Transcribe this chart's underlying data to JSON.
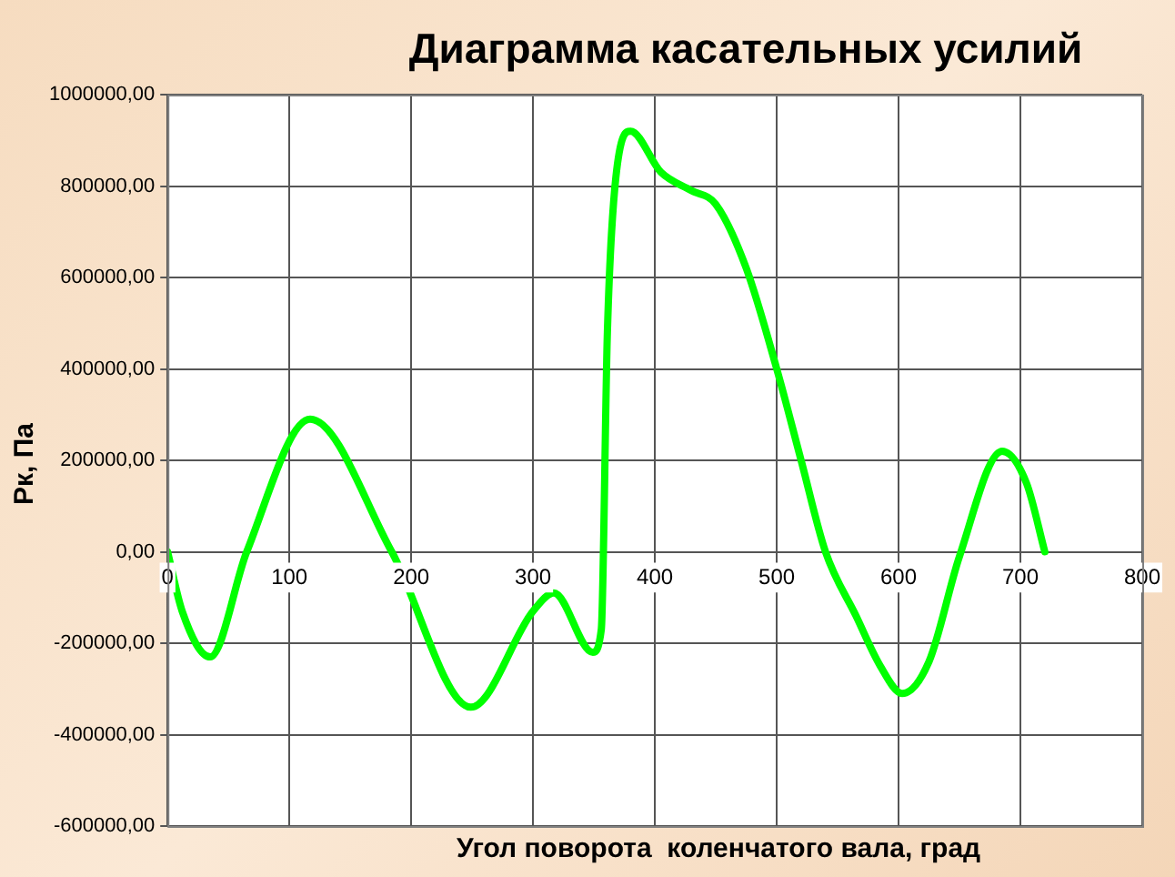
{
  "chart_data": {
    "type": "line",
    "title": "Диаграмма касательных усилий",
    "xlabel": "Угол поворота  коленчатого вала, град",
    "ylabel": "Рк, Па",
    "series": [
      {
        "color": "#00ff00",
        "x": [
          0,
          12,
          35,
          65,
          117,
          184,
          249,
          300,
          317,
          349,
          356,
          361,
          368,
          380,
          405,
          430,
          450,
          475,
          500,
          520,
          540,
          565,
          585,
          603,
          625,
          650,
          685,
          705,
          720
        ],
        "values": [
          0,
          -130000,
          -230000,
          0,
          290000,
          0,
          -340000,
          -130000,
          -90000,
          -220000,
          -170000,
          480000,
          820000,
          920000,
          830000,
          790000,
          760000,
          620000,
          400000,
          200000,
          0,
          -140000,
          -250000,
          -310000,
          -240000,
          -10000,
          220000,
          150000,
          0
        ]
      }
    ],
    "xlim": [
      0,
      800
    ],
    "xticks": [
      0,
      100,
      200,
      300,
      400,
      500,
      600,
      700,
      800
    ],
    "ylim": [
      -600000,
      1000000
    ],
    "yticks": [
      {
        "value": -600000,
        "label": "-600000,00"
      },
      {
        "value": -400000,
        "label": "-400000,00"
      },
      {
        "value": -200000,
        "label": "-200000,00"
      },
      {
        "value": 0,
        "label": "0,00"
      },
      {
        "value": 200000,
        "label": "200000,00"
      },
      {
        "value": 400000,
        "label": "400000,00"
      },
      {
        "value": 600000,
        "label": "600000,00"
      },
      {
        "value": 800000,
        "label": "800000,00"
      },
      {
        "value": 1000000,
        "label": "1000000,00"
      }
    ],
    "grid": true,
    "legend": false,
    "marker": "none",
    "line_style": "solid"
  }
}
